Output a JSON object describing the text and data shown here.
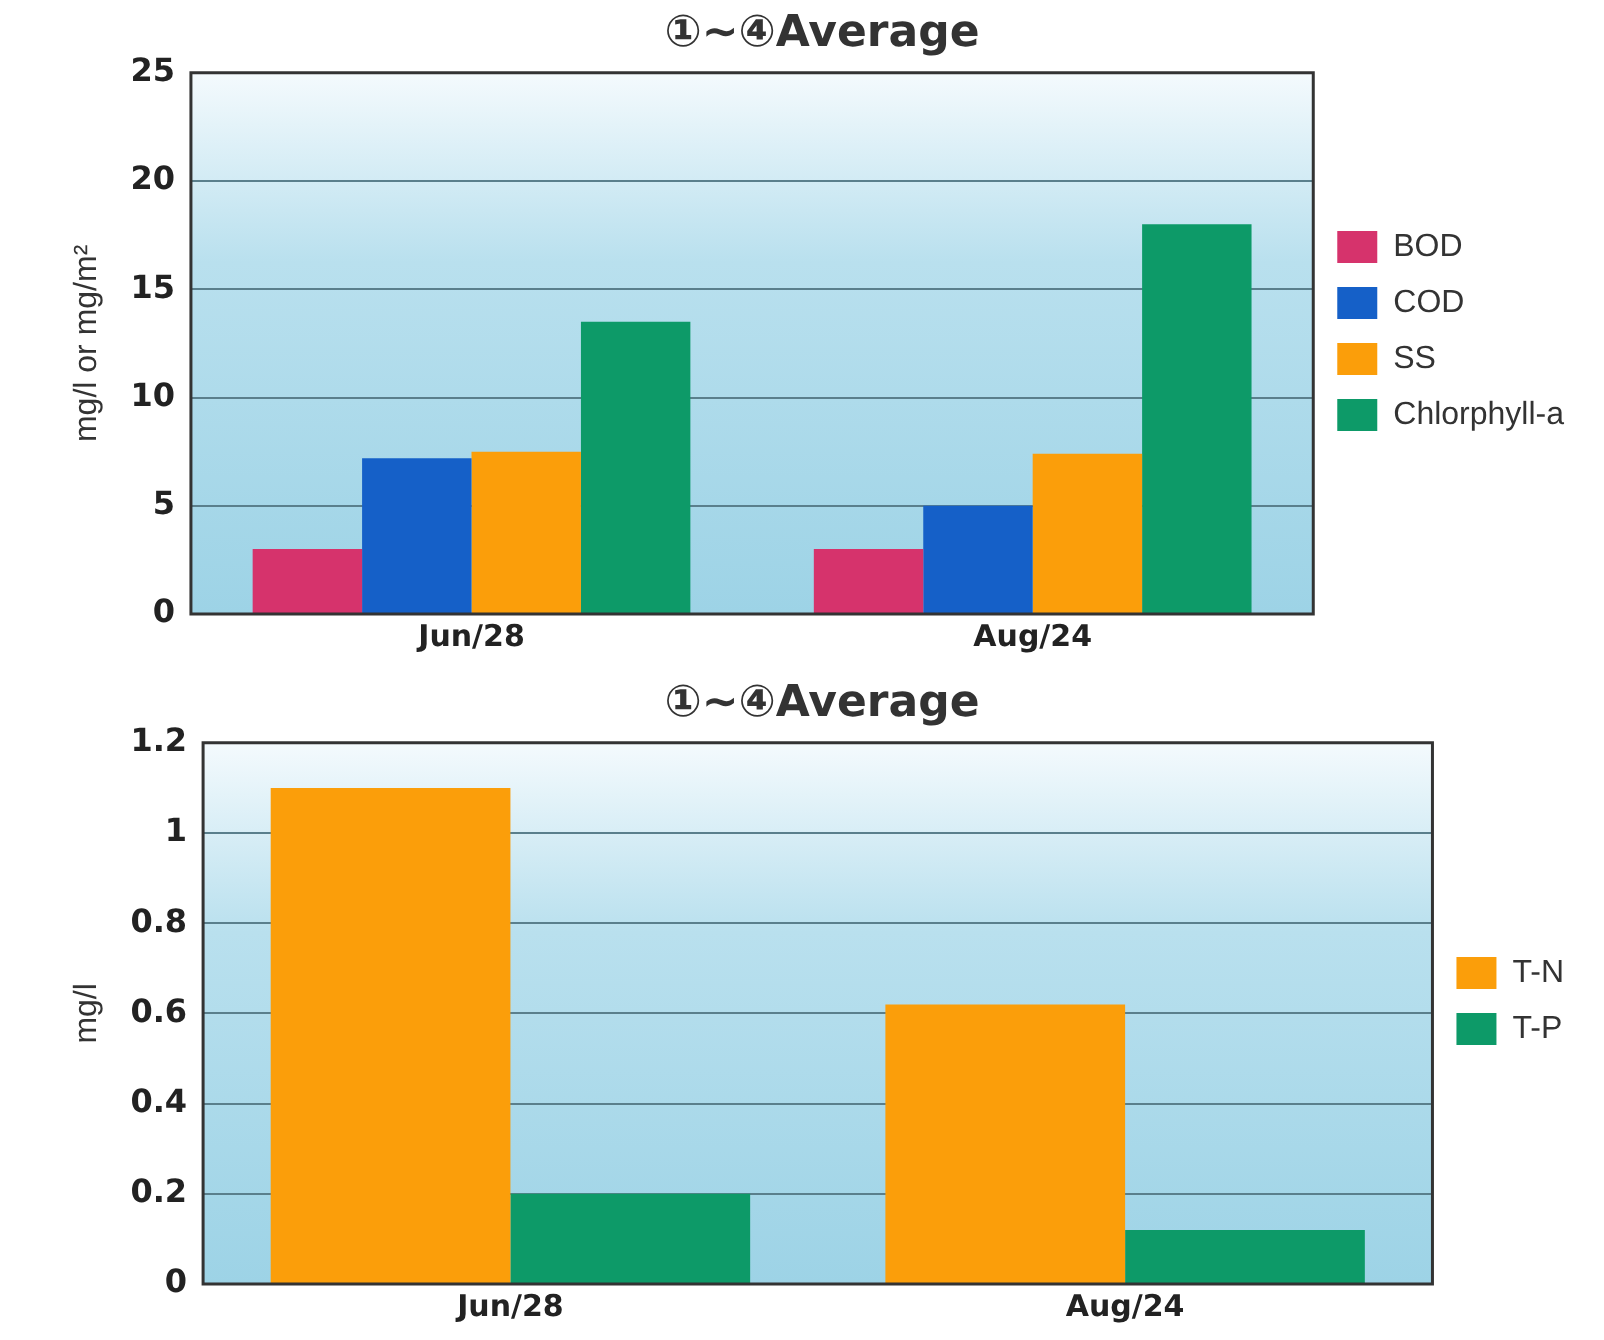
{
  "chart_data": [
    {
      "type": "bar",
      "title": "①~④Average",
      "ylabel": "mg/l or mg/m²",
      "categories": [
        "Jun/28",
        "Aug/24"
      ],
      "series": [
        {
          "name": "BOD",
          "color": "#d6336c",
          "values": [
            3,
            3
          ]
        },
        {
          "name": "COD",
          "color": "#1560c8",
          "values": [
            7.2,
            5
          ]
        },
        {
          "name": "SS",
          "color": "#fb9e0a",
          "values": [
            7.5,
            7.4
          ]
        },
        {
          "name": "Chlorphyll-a",
          "color": "#0d9a68",
          "values": [
            13.5,
            18
          ]
        }
      ],
      "ylim": [
        0,
        25
      ],
      "yticks": [
        0,
        5,
        10,
        15,
        20,
        25
      ],
      "grid": "y",
      "legend": "right"
    },
    {
      "type": "bar",
      "title": "①~④Average",
      "ylabel": "mg/l",
      "categories": [
        "Jun/28",
        "Aug/24"
      ],
      "series": [
        {
          "name": "T-N",
          "color": "#fb9e0a",
          "values": [
            1.1,
            0.62
          ]
        },
        {
          "name": "T-P",
          "color": "#0d9a68",
          "values": [
            0.2,
            0.12
          ]
        }
      ],
      "ylim": [
        0,
        1.2
      ],
      "yticks": [
        0,
        {
          "value": 0.2,
          "label": "0.2"
        },
        {
          "value": 0.4,
          "label": "0.4"
        },
        {
          "value": 0.6,
          "label": "0.6"
        },
        {
          "value": 0.8,
          "label": "0.8"
        },
        1,
        {
          "value": 1.2,
          "label": "1.2"
        }
      ],
      "grid": "y",
      "legend": "right"
    }
  ]
}
